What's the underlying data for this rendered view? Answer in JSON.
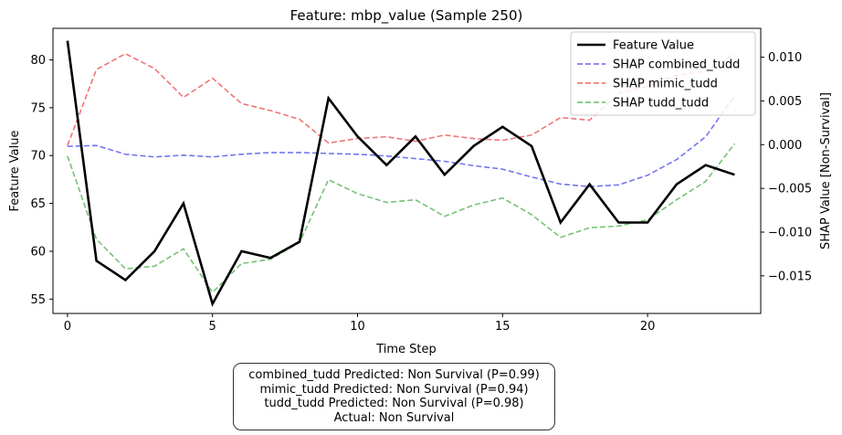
{
  "chart_data": {
    "type": "line",
    "title": "Feature: mbp_value (Sample 250)",
    "xlabel": "Time Step",
    "ylabel_left": "Feature Value",
    "ylabel_right": "SHAP Value [Non-Survival]",
    "x": [
      0,
      1,
      2,
      3,
      4,
      5,
      6,
      7,
      8,
      9,
      10,
      11,
      12,
      13,
      14,
      15,
      16,
      17,
      18,
      19,
      20,
      21,
      22,
      23
    ],
    "x_ticks": [
      0,
      5,
      10,
      15,
      20
    ],
    "ylim_left": [
      53.5,
      83.3
    ],
    "yticks_left": [
      55,
      60,
      65,
      70,
      75,
      80
    ],
    "ylim_right": [
      -0.0193,
      0.0133
    ],
    "yticks_right": [
      -0.015,
      -0.01,
      -0.005,
      0.0,
      0.005,
      0.01
    ],
    "yticks_right_labels": [
      "−0.015",
      "−0.010",
      "−0.005",
      "0.000",
      "0.005",
      "0.010"
    ],
    "legend_position": "upper right",
    "grid": false,
    "series": [
      {
        "name": "Feature Value",
        "axis": "left",
        "color": "#000000",
        "style": "solid",
        "values": [
          82,
          59,
          57,
          60,
          65,
          54.5,
          60,
          59.3,
          61,
          76,
          72,
          69,
          72,
          68,
          71,
          73,
          71,
          63,
          67,
          63,
          63,
          67,
          69,
          68
        ]
      },
      {
        "name": "SHAP combined_tudd",
        "axis": "right",
        "color": "#6666ee",
        "style": "dashed",
        "values": [
          -0.0002,
          -0.0001,
          -0.0011,
          -0.0014,
          -0.0012,
          -0.0014,
          -0.0011,
          -0.0009,
          -0.0009,
          -0.001,
          -0.0011,
          -0.0013,
          -0.0016,
          -0.0019,
          -0.0024,
          -0.0028,
          -0.0037,
          -0.0045,
          -0.0048,
          -0.0046,
          -0.0035,
          -0.0017,
          0.0009,
          0.0056
        ]
      },
      {
        "name": "SHAP mimic_tudd",
        "axis": "right",
        "color": "#ee6666",
        "style": "dashed",
        "values": [
          -0.0001,
          0.0086,
          0.0104,
          0.0087,
          0.0054,
          0.0076,
          0.0047,
          0.0039,
          0.0029,
          0.0002,
          0.0007,
          0.0009,
          0.0004,
          0.0011,
          0.0007,
          0.0005,
          0.0011,
          0.0031,
          0.0028,
          0.0059,
          0.0067,
          0.0079,
          0.0084,
          0.0104
        ]
      },
      {
        "name": "SHAP tudd_tudd",
        "axis": "right",
        "color": "#66bb66",
        "style": "dashed",
        "values": [
          -0.0013,
          -0.0108,
          -0.0142,
          -0.0139,
          -0.0119,
          -0.0169,
          -0.0136,
          -0.0131,
          -0.0112,
          -0.004,
          -0.0056,
          -0.0066,
          -0.0063,
          -0.0082,
          -0.0069,
          -0.0061,
          -0.008,
          -0.0106,
          -0.0095,
          -0.0093,
          -0.0086,
          -0.0063,
          -0.0042,
          0.0001
        ]
      }
    ]
  },
  "info_box": {
    "lines": [
      "combined_tudd Predicted: Non Survival (P=0.99)",
      "mimic_tudd Predicted: Non Survival (P=0.94)",
      "tudd_tudd Predicted: Non Survival (P=0.98)",
      "Actual: Non Survival"
    ]
  }
}
